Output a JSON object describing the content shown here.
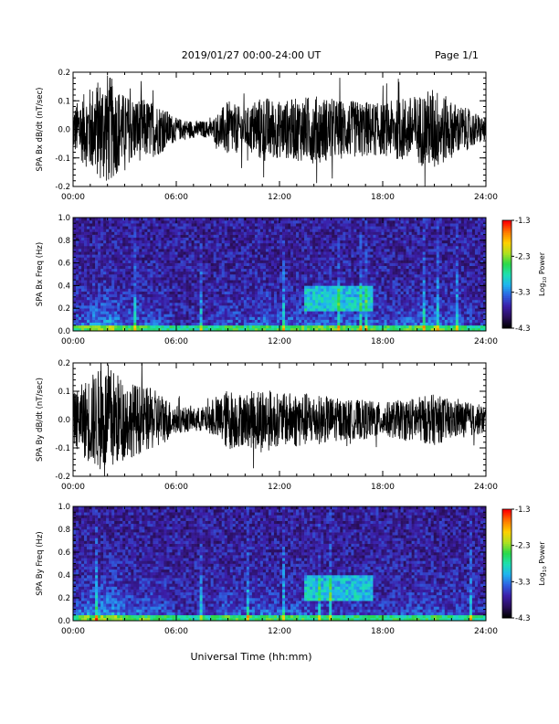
{
  "header": {
    "date_range": "2019/01/27  00:00-24:00 UT",
    "page": "Page 1/1"
  },
  "footer": {
    "xlabel": "Universal Time (hh:mm)"
  },
  "colors": {
    "trace": "#000000",
    "colormap": [
      "#000000",
      "#2a0f5c",
      "#3b1ea8",
      "#2f5fe0",
      "#1fb4f0",
      "#1ee0b0",
      "#2ad84a",
      "#b0e020",
      "#ffd000",
      "#ff7a00",
      "#ff0000"
    ]
  },
  "chart_data": [
    {
      "type": "line",
      "title": "",
      "ylabel": "SPA Bx dB/dt (nT/sec)",
      "xlabel": "",
      "xlim": [
        "00:00",
        "24:00"
      ],
      "x_ticks": [
        "00:00",
        "06:00",
        "12:00",
        "18:00",
        "24:00"
      ],
      "ylim": [
        -0.2,
        0.2
      ],
      "y_ticks": [
        "-0.2",
        "-0.1",
        "0.0",
        "0.1",
        "0.2"
      ],
      "envelope": {
        "x_hours": [
          0,
          1,
          2,
          3,
          4,
          5,
          6,
          7,
          8,
          9,
          10,
          11,
          12,
          13,
          14,
          15,
          16,
          17,
          18,
          19,
          20,
          21,
          22,
          23,
          24
        ],
        "amplitude": [
          0.08,
          0.15,
          0.2,
          0.12,
          0.11,
          0.09,
          0.04,
          0.03,
          0.03,
          0.1,
          0.07,
          0.12,
          0.1,
          0.11,
          0.12,
          0.11,
          0.1,
          0.1,
          0.09,
          0.11,
          0.12,
          0.15,
          0.1,
          0.07,
          0.04
        ]
      }
    },
    {
      "type": "heatmap",
      "title": "",
      "ylabel": "SPA Bx Freq (Hz)",
      "xlabel": "",
      "xlim": [
        "00:00",
        "24:00"
      ],
      "x_ticks": [
        "00:00",
        "06:00",
        "12:00",
        "18:00",
        "24:00"
      ],
      "ylim": [
        0.0,
        1.0
      ],
      "y_ticks": [
        "0.0",
        "0.2",
        "0.4",
        "0.6",
        "0.8",
        "1.0"
      ],
      "colorbar": {
        "label": "Log",
        "label_sub": "10",
        "label_suffix": " Power",
        "range": [
          -4.3,
          -1.3
        ],
        "ticks": [
          "-1.3",
          "-2.3",
          "-3.3",
          "-4.3"
        ]
      }
    },
    {
      "type": "line",
      "title": "",
      "ylabel": "SPA By dB/dt (nT/sec)",
      "xlabel": "",
      "xlim": [
        "00:00",
        "24:00"
      ],
      "x_ticks": [
        "00:00",
        "06:00",
        "12:00",
        "18:00",
        "24:00"
      ],
      "ylim": [
        -0.2,
        0.2
      ],
      "y_ticks": [
        "-0.2",
        "-0.1",
        "0.0",
        "0.1",
        "0.2"
      ],
      "envelope": {
        "x_hours": [
          0,
          1,
          2,
          3,
          4,
          5,
          6,
          7,
          8,
          9,
          10,
          11,
          12,
          13,
          14,
          15,
          16,
          17,
          18,
          19,
          20,
          21,
          22,
          23,
          24
        ],
        "amplitude": [
          0.09,
          0.16,
          0.2,
          0.14,
          0.12,
          0.1,
          0.05,
          0.04,
          0.05,
          0.11,
          0.09,
          0.12,
          0.09,
          0.1,
          0.09,
          0.08,
          0.07,
          0.07,
          0.06,
          0.07,
          0.08,
          0.09,
          0.07,
          0.06,
          0.05
        ]
      }
    },
    {
      "type": "heatmap",
      "title": "",
      "ylabel": "SPA By Freq (Hz)",
      "xlabel": "",
      "xlim": [
        "00:00",
        "24:00"
      ],
      "x_ticks": [
        "00:00",
        "06:00",
        "12:00",
        "18:00",
        "24:00"
      ],
      "ylim": [
        0.0,
        1.0
      ],
      "y_ticks": [
        "0.0",
        "0.2",
        "0.4",
        "0.6",
        "0.8",
        "1.0"
      ],
      "colorbar": {
        "label": "Log",
        "label_sub": "10",
        "label_suffix": " Power",
        "range": [
          -4.3,
          -1.3
        ],
        "ticks": [
          "-1.3",
          "-2.3",
          "-3.3",
          "-4.3"
        ]
      }
    }
  ]
}
